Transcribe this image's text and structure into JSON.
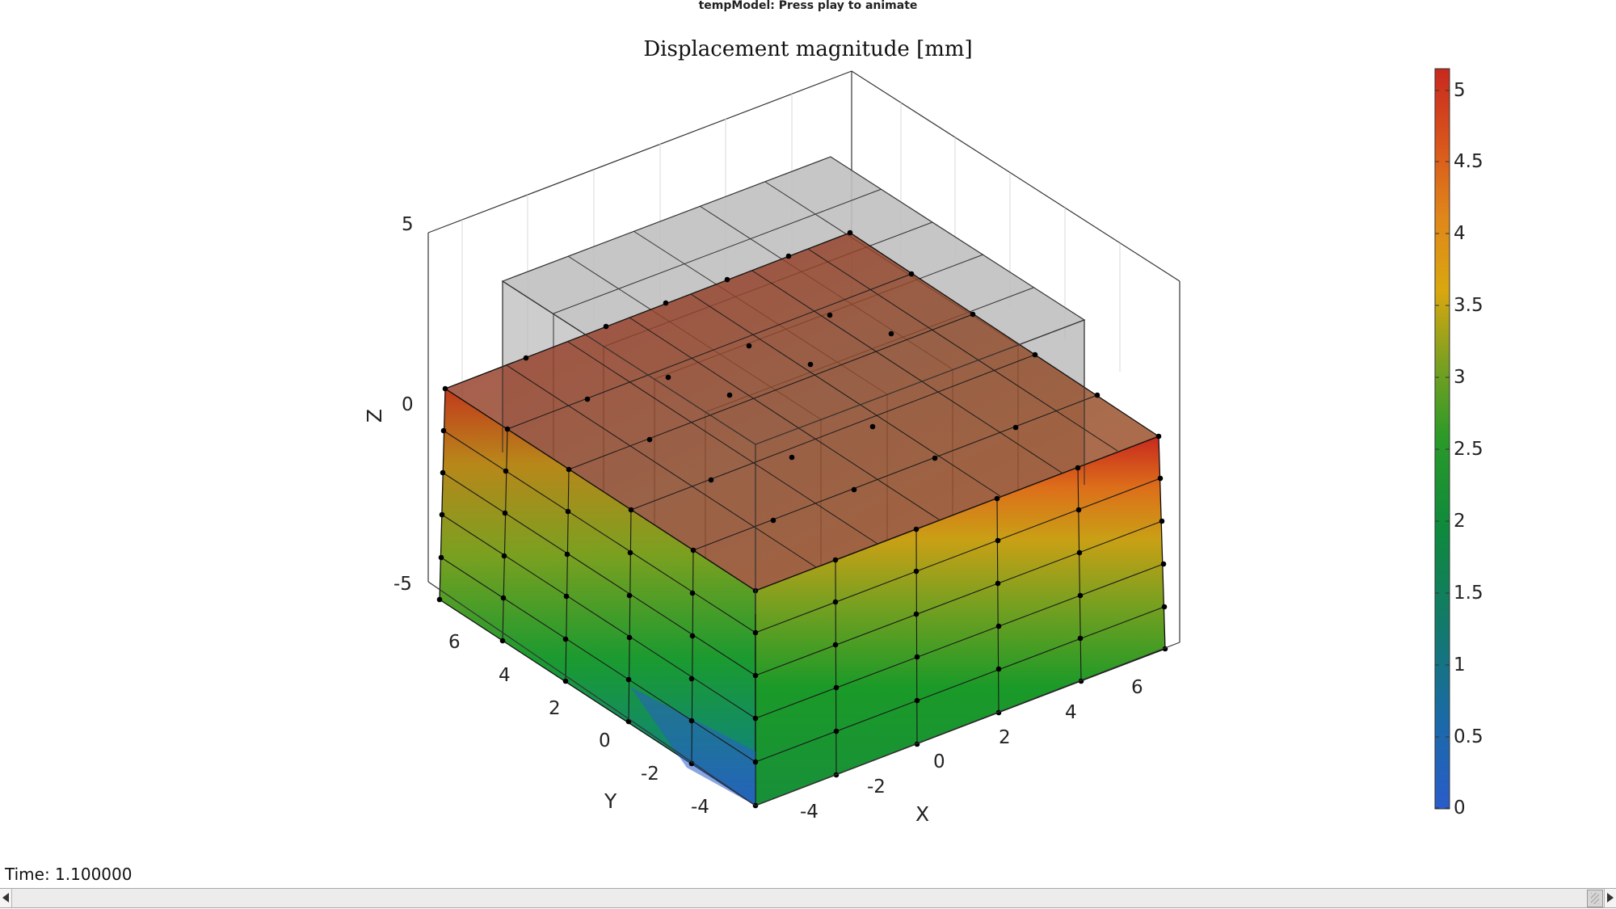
{
  "window": {
    "title": "tempModel: Press play to animate"
  },
  "plot": {
    "title": "Displacement magnitude [mm]",
    "xlabel": "X",
    "ylabel": "Y",
    "zlabel": "Z",
    "x_ticks": [
      "-4",
      "-2",
      "0",
      "2",
      "4",
      "6"
    ],
    "y_ticks": [
      "-4",
      "-2",
      "0",
      "2",
      "4",
      "6"
    ],
    "z_ticks": [
      "5",
      "0",
      "-5"
    ],
    "colormap_colors": [
      "#2a5cc9",
      "#127a8e",
      "#0d8a48",
      "#1a9a28",
      "#7aa020",
      "#d9a70f",
      "#dd6f1a",
      "#c8281e"
    ]
  },
  "colorbar": {
    "ticks": [
      "5",
      "4.5",
      "4",
      "3.5",
      "3",
      "2.5",
      "2",
      "1.5",
      "1",
      "0.5",
      "0"
    ],
    "min": 0,
    "max": 5.15
  },
  "status": {
    "time_text": "Time: 1.100000"
  },
  "slider": {
    "value": 0.99
  },
  "chart_data": {
    "type": "surface",
    "title": "Displacement magnitude [mm]",
    "xlabel": "X",
    "ylabel": "Y",
    "zlabel": "Z",
    "xlim": [
      -5,
      8
    ],
    "ylim": [
      -5,
      8
    ],
    "zlim": [
      -5,
      6
    ],
    "color_range": [
      0,
      5.15
    ],
    "undeformed_box": {
      "x": [
        -4,
        6
      ],
      "y": [
        -4,
        6
      ],
      "z": [
        -3.5,
        2.5
      ]
    },
    "deformed_box": {
      "x": [
        -5,
        7.5
      ],
      "y": [
        -5,
        7.5
      ],
      "z": [
        -6,
        -0.6
      ]
    }
  }
}
